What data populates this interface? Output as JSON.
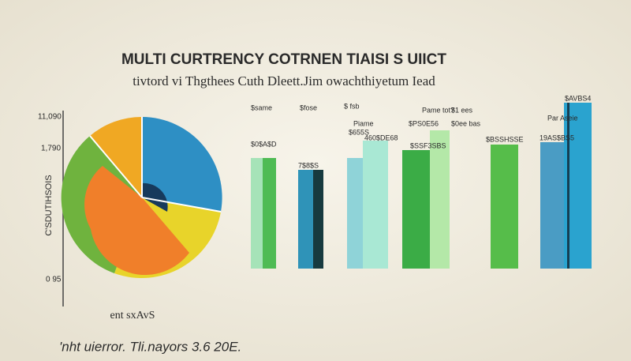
{
  "header": {
    "title": "MULTI CURTRENCY COTRNEN TIAISI   S UIICT",
    "subtitle": "tivtord vi Thgthees Cuth Dleett.Jim owachthiyetum Iead"
  },
  "axis": {
    "labels": [
      "11,090",
      "1,790",
      "0 95"
    ],
    "side": "C'SDUTIHSOIS"
  },
  "pie_caption": "ent sxAvS",
  "bar_labels": [
    "$same",
    "$fose",
    "$ fsb",
    "Piame",
    "Pame tot?",
    "$1 ees",
    "$PS0E56",
    "$0ee bas",
    "Par Aseie",
    "$AVBS4",
    "$0$A$D",
    "7$8$S",
    "$655S",
    "460$DE68",
    "$SSF3SBS",
    "$BSSHSSE",
    "19AS$BS5"
  ],
  "footer": "'nht uierror. Tli.nayors 3.6 20E."
}
